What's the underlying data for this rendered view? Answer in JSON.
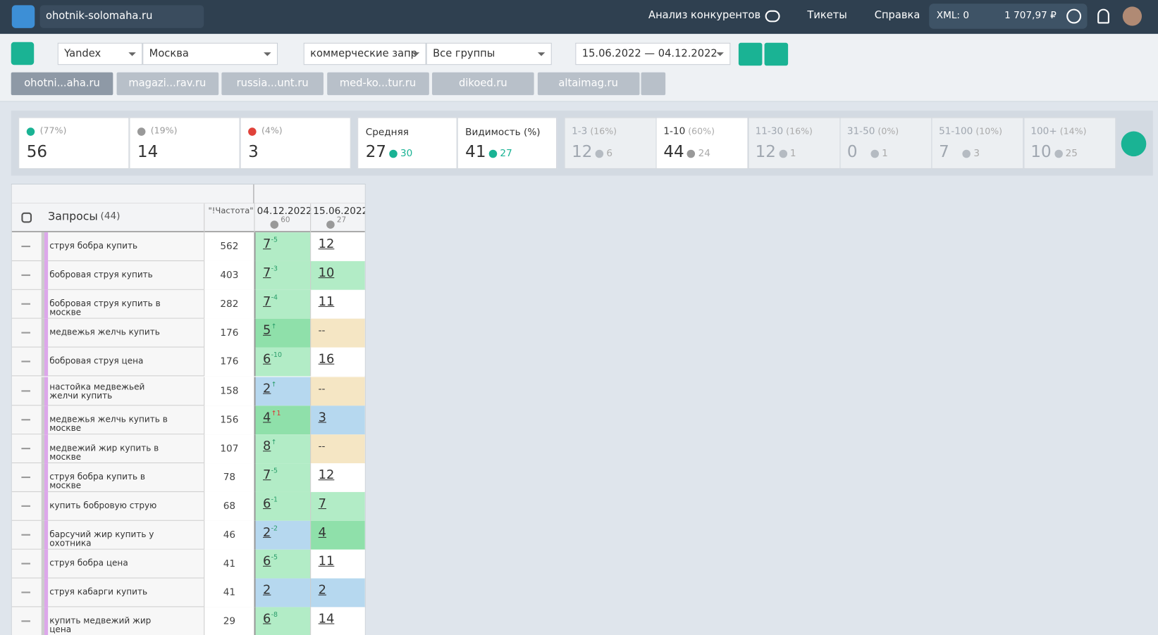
{
  "header": {
    "site": "ohotnik-solomaha.ru",
    "nav": [
      "Анализ конкурентов",
      "Тикеты",
      "Справка"
    ],
    "xml": "XML: 0",
    "balance": "1 707,97 ₽"
  },
  "toolbar": {
    "engine": "Yandex",
    "region": "Москва",
    "query_group": "коммерческие запр",
    "groups": "Все группы",
    "dates": "15.06.2022 — 04.12.2022"
  },
  "tabs": [
    "ohotni...aha.ru",
    "magazi...rav.ru",
    "russia...unt.ru",
    "med-ko...tur.ru",
    "dikoed.ru",
    "altaimag.ru"
  ],
  "stats": {
    "counts": [
      {
        "pct": "(77%)",
        "value": "56",
        "dir": "up"
      },
      {
        "pct": "(19%)",
        "value": "14",
        "dir": "same"
      },
      {
        "pct": "(4%)",
        "value": "3",
        "dir": "down"
      }
    ],
    "summary": [
      {
        "label": "Средняя",
        "value": "27",
        "delta": "30",
        "dir": "up"
      },
      {
        "label": "Видимость (%)",
        "value": "41",
        "delta": "27",
        "dir": "up"
      }
    ],
    "ranges": [
      {
        "label": "1-3",
        "pct": "(16%)",
        "value": "12",
        "delta": "6",
        "dir": "up"
      },
      {
        "label": "1-10",
        "pct": "(60%)",
        "value": "44",
        "delta": "24",
        "dir": "up",
        "active": true
      },
      {
        "label": "11-30",
        "pct": "(16%)",
        "value": "12",
        "delta": "1",
        "dir": "down"
      },
      {
        "label": "31-50",
        "pct": "(0%)",
        "value": "0",
        "delta": "1",
        "dir": "down"
      },
      {
        "label": "51-100",
        "pct": "(10%)",
        "value": "7",
        "delta": "3",
        "dir": "up"
      },
      {
        "label": "100+",
        "pct": "(14%)",
        "value": "10",
        "delta": "25",
        "dir": "up"
      }
    ]
  },
  "table": {
    "queries_label": "Запросы",
    "queries_count": "(44)",
    "freq_label": "\"!Частота\"",
    "dates": [
      {
        "date": "04.12.2022",
        "sub": "60"
      },
      {
        "date": "15.06.2022",
        "sub": "27"
      }
    ],
    "rows": [
      [
        "струя бобра купить",
        "562",
        "7",
        "-5",
        "12"
      ],
      [
        "бобровая струя купить",
        "403",
        "7",
        "-3",
        "10"
      ],
      [
        "бобровая струя купить в москве",
        "282",
        "7",
        "-4",
        "11"
      ],
      [
        "медвежья желчь купить",
        "176",
        "5",
        "↑",
        "--"
      ],
      [
        "бобровая струя цена",
        "176",
        "6",
        "-10",
        "16"
      ],
      [
        "настойка медвежьей желчи купить",
        "158",
        "2",
        "↑",
        "--"
      ],
      [
        "медвежья желчь купить в москве",
        "156",
        "4",
        "↑1",
        "3"
      ],
      [
        "медвежий жир купить в москве",
        "107",
        "8",
        "↑",
        "--"
      ],
      [
        "струя бобра купить в москве",
        "78",
        "7",
        "-5",
        "12"
      ],
      [
        "купить бобровую струю",
        "68",
        "6",
        "-1",
        "7"
      ],
      [
        "барсучий жир купить у охотника",
        "46",
        "2",
        "-2",
        "4"
      ],
      [
        "струя бобра цена",
        "41",
        "6",
        "-5",
        "11"
      ],
      [
        "струя кабарги купить",
        "41",
        "2",
        null,
        "2"
      ],
      [
        "купить медвежий жир цена",
        "29",
        "6",
        "-8",
        "14"
      ]
    ]
  }
}
